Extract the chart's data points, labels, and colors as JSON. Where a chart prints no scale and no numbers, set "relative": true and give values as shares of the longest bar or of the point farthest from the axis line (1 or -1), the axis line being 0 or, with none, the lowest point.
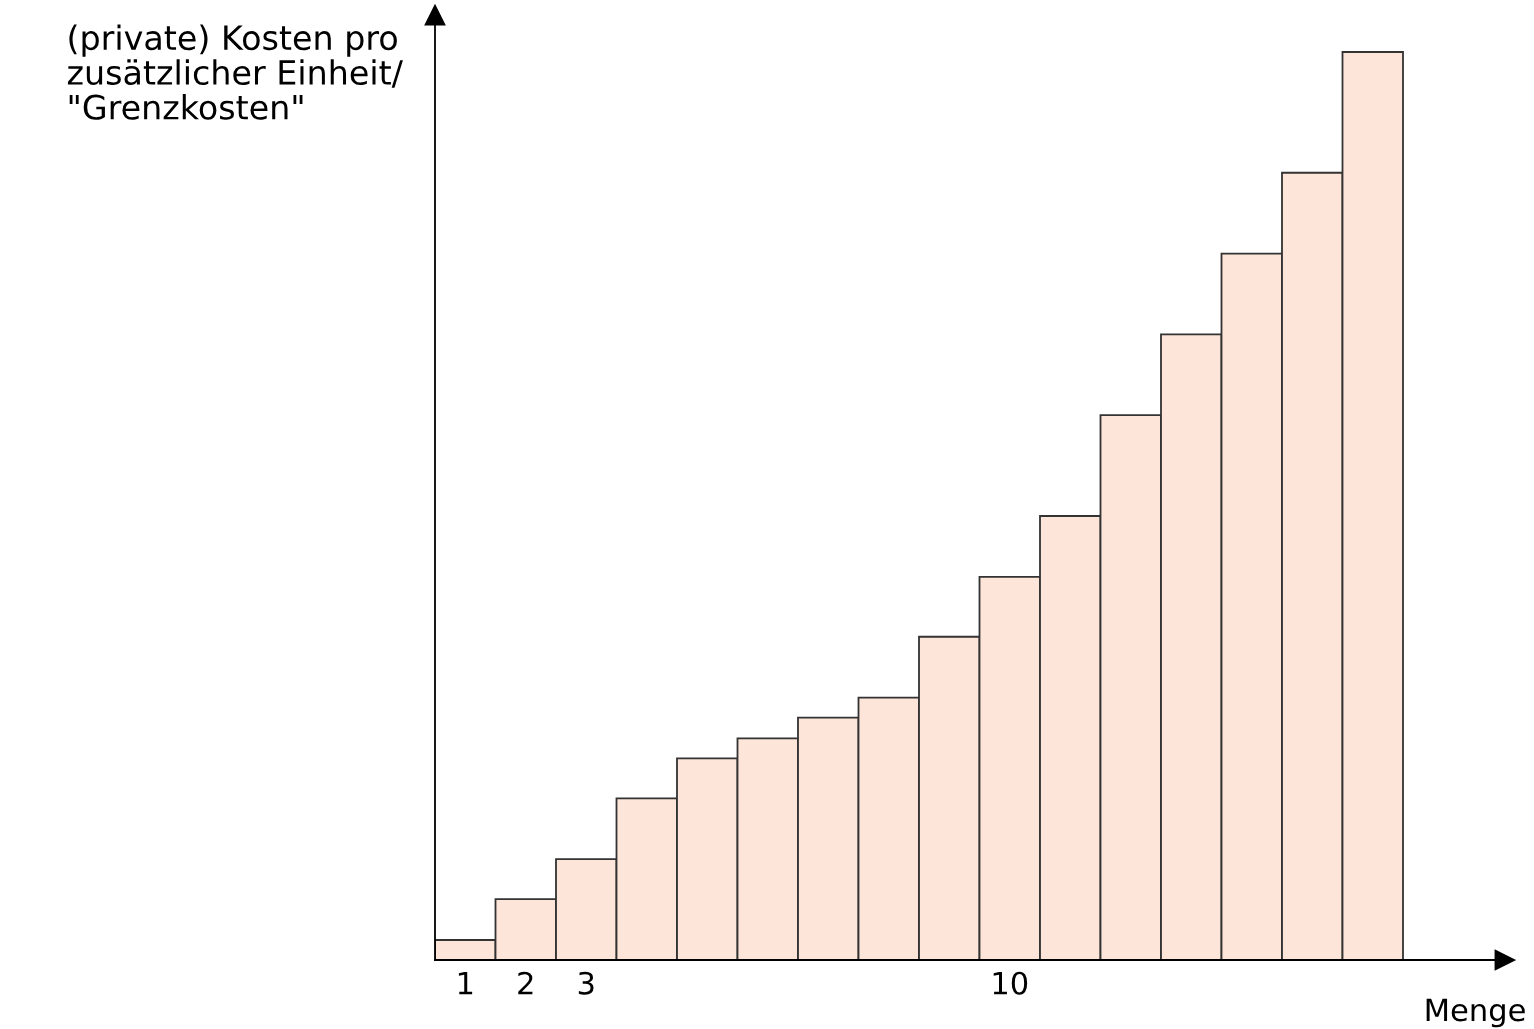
{
  "chart_data": {
    "type": "bar",
    "relative": true,
    "ylabel": "(private) Kosten pro\nzusätzlicher Einheit/\n\"Grenzkosten\"",
    "xlabel": "Menge",
    "categories": [
      "1",
      "2",
      "3",
      null,
      null,
      null,
      null,
      null,
      null,
      "10",
      null,
      null,
      null,
      null,
      null,
      null
    ],
    "values": [
      0.022,
      0.067,
      0.111,
      0.178,
      0.222,
      0.244,
      0.267,
      0.289,
      0.356,
      0.422,
      0.489,
      0.6,
      0.689,
      0.778,
      0.867,
      1
    ],
    "color": "#fde5d9",
    "grid": false,
    "legend": false
  }
}
